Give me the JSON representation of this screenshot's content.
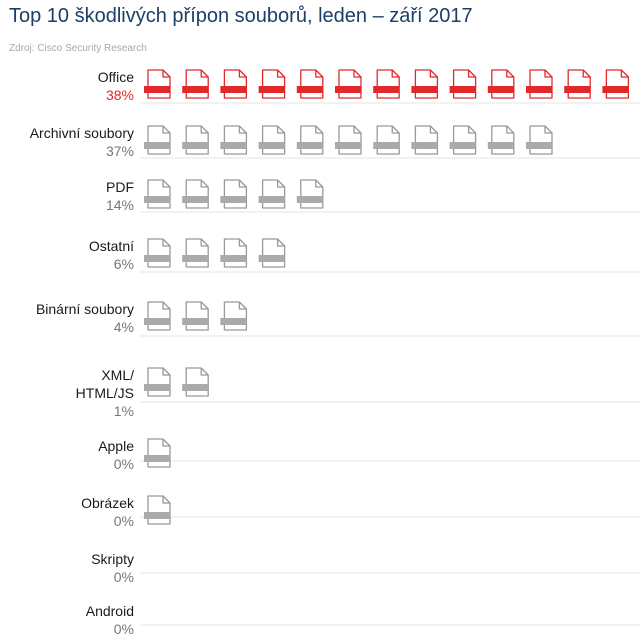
{
  "chart_data": {
    "type": "pictogram",
    "title": "Top 10 škodlivých přípon souborů, leden – září 2017",
    "source": "Zdroj: Cisco Security Research",
    "categories": [
      {
        "label": [
          "Office"
        ],
        "percent": "38%",
        "value": 38,
        "icons": 13,
        "highlight": true
      },
      {
        "label": [
          "Archivní soubory"
        ],
        "percent": "37%",
        "value": 37,
        "icons": 11,
        "highlight": false
      },
      {
        "label": [
          "PDF"
        ],
        "percent": "14%",
        "value": 14,
        "icons": 5,
        "highlight": false
      },
      {
        "label": [
          "Ostatní"
        ],
        "percent": "6%",
        "value": 6,
        "icons": 4,
        "highlight": false
      },
      {
        "label": [
          "Binární soubory"
        ],
        "percent": "4%",
        "value": 4,
        "icons": 3,
        "highlight": false
      },
      {
        "label": [
          "XML/",
          "HTML/JS"
        ],
        "percent": "1%",
        "value": 1,
        "icons": 2,
        "highlight": false
      },
      {
        "label": [
          "Apple"
        ],
        "percent": "0%",
        "value": 0,
        "icons": 1,
        "highlight": false
      },
      {
        "label": [
          "Obrázek"
        ],
        "percent": "0%",
        "value": 0,
        "icons": 1,
        "highlight": false
      },
      {
        "label": [
          "Skripty"
        ],
        "percent": "0%",
        "value": 0,
        "icons": 0,
        "highlight": false
      },
      {
        "label": [
          "Android"
        ],
        "percent": "0%",
        "value": 0,
        "icons": 0,
        "highlight": false
      }
    ],
    "colors": {
      "highlight": "#e02a2a",
      "icon_outline": "#999999",
      "icon_band": "#aaaaaa",
      "title": "#1b3f68"
    }
  }
}
